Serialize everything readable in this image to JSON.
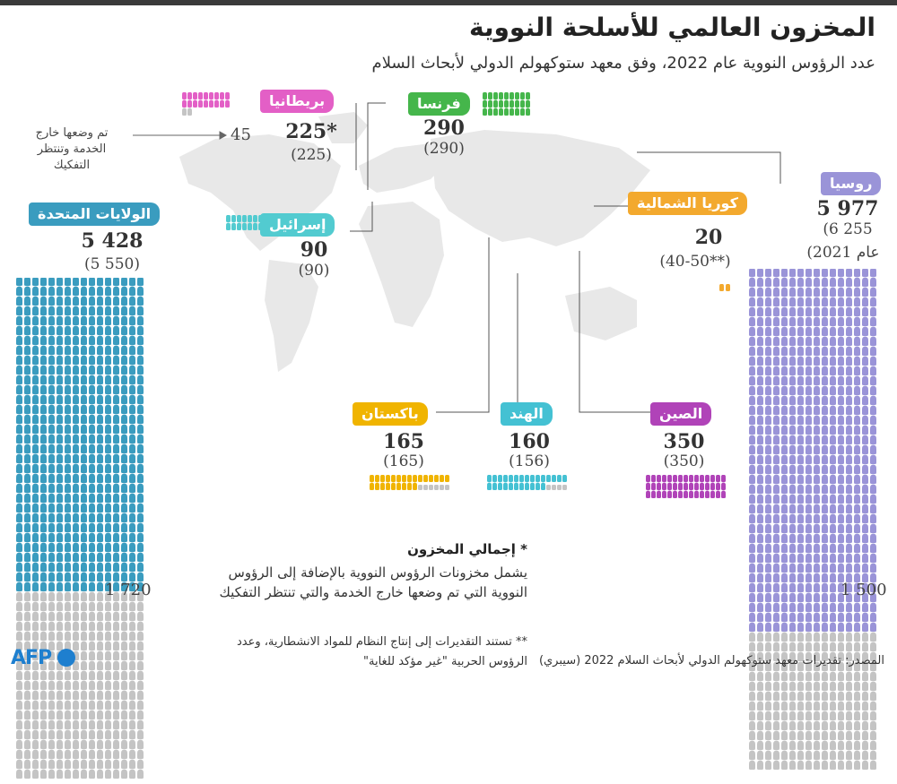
{
  "title": "المخزون العالمي للأسلحة النووية",
  "subtitle": "عدد الرؤوس النووية عام 2022، وفق معهد ستوكهولم الدولي لأبحاث السلام",
  "colors": {
    "usa": "#3a9cbf",
    "russia": "#9a94d8",
    "uk": "#e35fc6",
    "france": "#45b64b",
    "israel": "#52cbd0",
    "north_korea": "#f3a92e",
    "pakistan": "#f0b400",
    "india": "#44c1d3",
    "china": "#b043b8",
    "retired": "#c4c4c4",
    "map": "#e8e8e8"
  },
  "countries": {
    "usa": {
      "name": "الولايات المتحدة",
      "value": "5 428",
      "prev": "(5 550)",
      "retired": "1 720"
    },
    "russia": {
      "name": "روسيا",
      "value": "5 977",
      "prev": "(6 255",
      "prev_year": "عام 2021)",
      "retired": "1 500"
    },
    "uk": {
      "name": "بريطانيا",
      "value": "225*",
      "prev": "(225)",
      "retired": "45"
    },
    "france": {
      "name": "فرنسا",
      "value": "290",
      "prev": "(290)"
    },
    "israel": {
      "name": "إسرائيل",
      "value": "90",
      "prev": "(90)"
    },
    "north_korea": {
      "name": "كوريا الشمالية",
      "value": "20",
      "prev": "(40-50**)"
    },
    "pakistan": {
      "name": "باكستان",
      "value": "165",
      "prev": "(165)"
    },
    "india": {
      "name": "الهند",
      "value": "160",
      "prev": "(156)"
    },
    "china": {
      "name": "الصين",
      "value": "350",
      "prev": "(350)"
    }
  },
  "retired_note": "تم وضعها خارج الخدمة وتنتظر التفكيك",
  "footnote_star": {
    "mark": "*",
    "heading": "إجمالي المخزون",
    "text": "يشمل مخزونات الرؤوس النووية بالإضافة إلى الرؤوس النووية التي تم وضعها خارج الخدمة والتي تنتظر التفكيك"
  },
  "footnote_double": "** تستند التقديرات إلى إنتاج النظام للمواد الانشطارية، وعدد الرؤوس الحربية \"غير مؤكد للغاية\"",
  "source": "المصدر: تقديرات معهد ستوكهولم الدولي لأبحاث السلام 2022 (سيبري)",
  "logo": "AFP"
}
